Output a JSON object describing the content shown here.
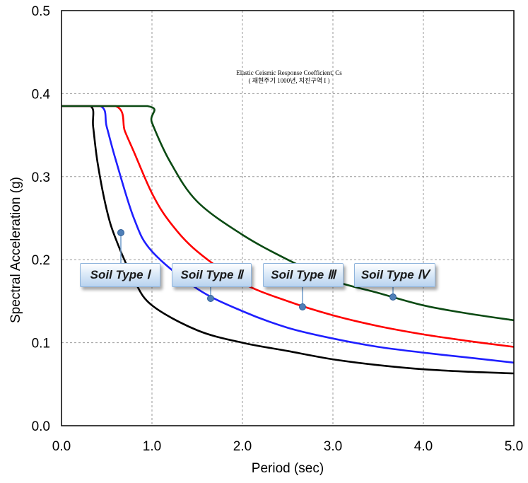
{
  "chart_data": {
    "type": "line",
    "title": "Elastic Ceismic Response Coefficient, Cs",
    "subtitle": "( 재현주기 1000년, 지진구역 I )",
    "xlabel": "Period (sec)",
    "ylabel": "Spectral Acceleration (g)",
    "xlim": [
      0.0,
      5.0
    ],
    "ylim": [
      0.0,
      0.5
    ],
    "x_ticks": [
      "0.0",
      "1.0",
      "2.0",
      "3.0",
      "4.0",
      "5.0"
    ],
    "y_ticks": [
      "0.0",
      "0.1",
      "0.2",
      "0.3",
      "0.4",
      "0.5"
    ],
    "grid": true,
    "series": [
      {
        "name": "Soil Type Ⅰ",
        "color": "#000000",
        "x": [
          0.0,
          0.32,
          0.35,
          0.4,
          0.5,
          0.6,
          0.8,
          1.0,
          1.5,
          2.0,
          2.5,
          3.0,
          3.5,
          4.0,
          4.5,
          5.0
        ],
        "y": [
          0.385,
          0.385,
          0.36,
          0.316,
          0.26,
          0.225,
          0.176,
          0.145,
          0.115,
          0.1,
          0.09,
          0.08,
          0.073,
          0.068,
          0.065,
          0.063
        ]
      },
      {
        "name": "Soil Type Ⅱ",
        "color": "#1f1fff",
        "x": [
          0.0,
          0.43,
          0.5,
          0.6,
          0.8,
          1.0,
          1.5,
          2.0,
          2.5,
          3.0,
          3.5,
          4.0,
          4.5,
          5.0
        ],
        "y": [
          0.385,
          0.385,
          0.36,
          0.32,
          0.25,
          0.21,
          0.165,
          0.138,
          0.118,
          0.105,
          0.095,
          0.088,
          0.082,
          0.076
        ]
      },
      {
        "name": "Soil Type Ⅲ",
        "color": "#ff0000",
        "x": [
          0.0,
          0.6,
          0.7,
          0.8,
          1.0,
          1.2,
          1.5,
          2.0,
          2.5,
          3.0,
          3.5,
          4.0,
          4.5,
          5.0
        ],
        "y": [
          0.385,
          0.385,
          0.355,
          0.33,
          0.28,
          0.245,
          0.21,
          0.172,
          0.15,
          0.133,
          0.12,
          0.11,
          0.102,
          0.095
        ]
      },
      {
        "name": "Soil Type Ⅳ",
        "color": "#0b4a13",
        "x": [
          0.0,
          0.95,
          1.0,
          1.2,
          1.5,
          2.0,
          2.5,
          3.0,
          3.5,
          4.0,
          4.5,
          5.0
        ],
        "y": [
          0.385,
          0.385,
          0.365,
          0.318,
          0.27,
          0.23,
          0.2,
          0.175,
          0.16,
          0.145,
          0.135,
          0.127
        ]
      }
    ],
    "callouts": [
      {
        "label": "Soil Type Ⅰ",
        "series": 0
      },
      {
        "label": "Soil Type Ⅱ",
        "series": 1
      },
      {
        "label": "Soil Type Ⅲ",
        "series": 2
      },
      {
        "label": "Soil Type Ⅳ",
        "series": 3
      }
    ]
  }
}
